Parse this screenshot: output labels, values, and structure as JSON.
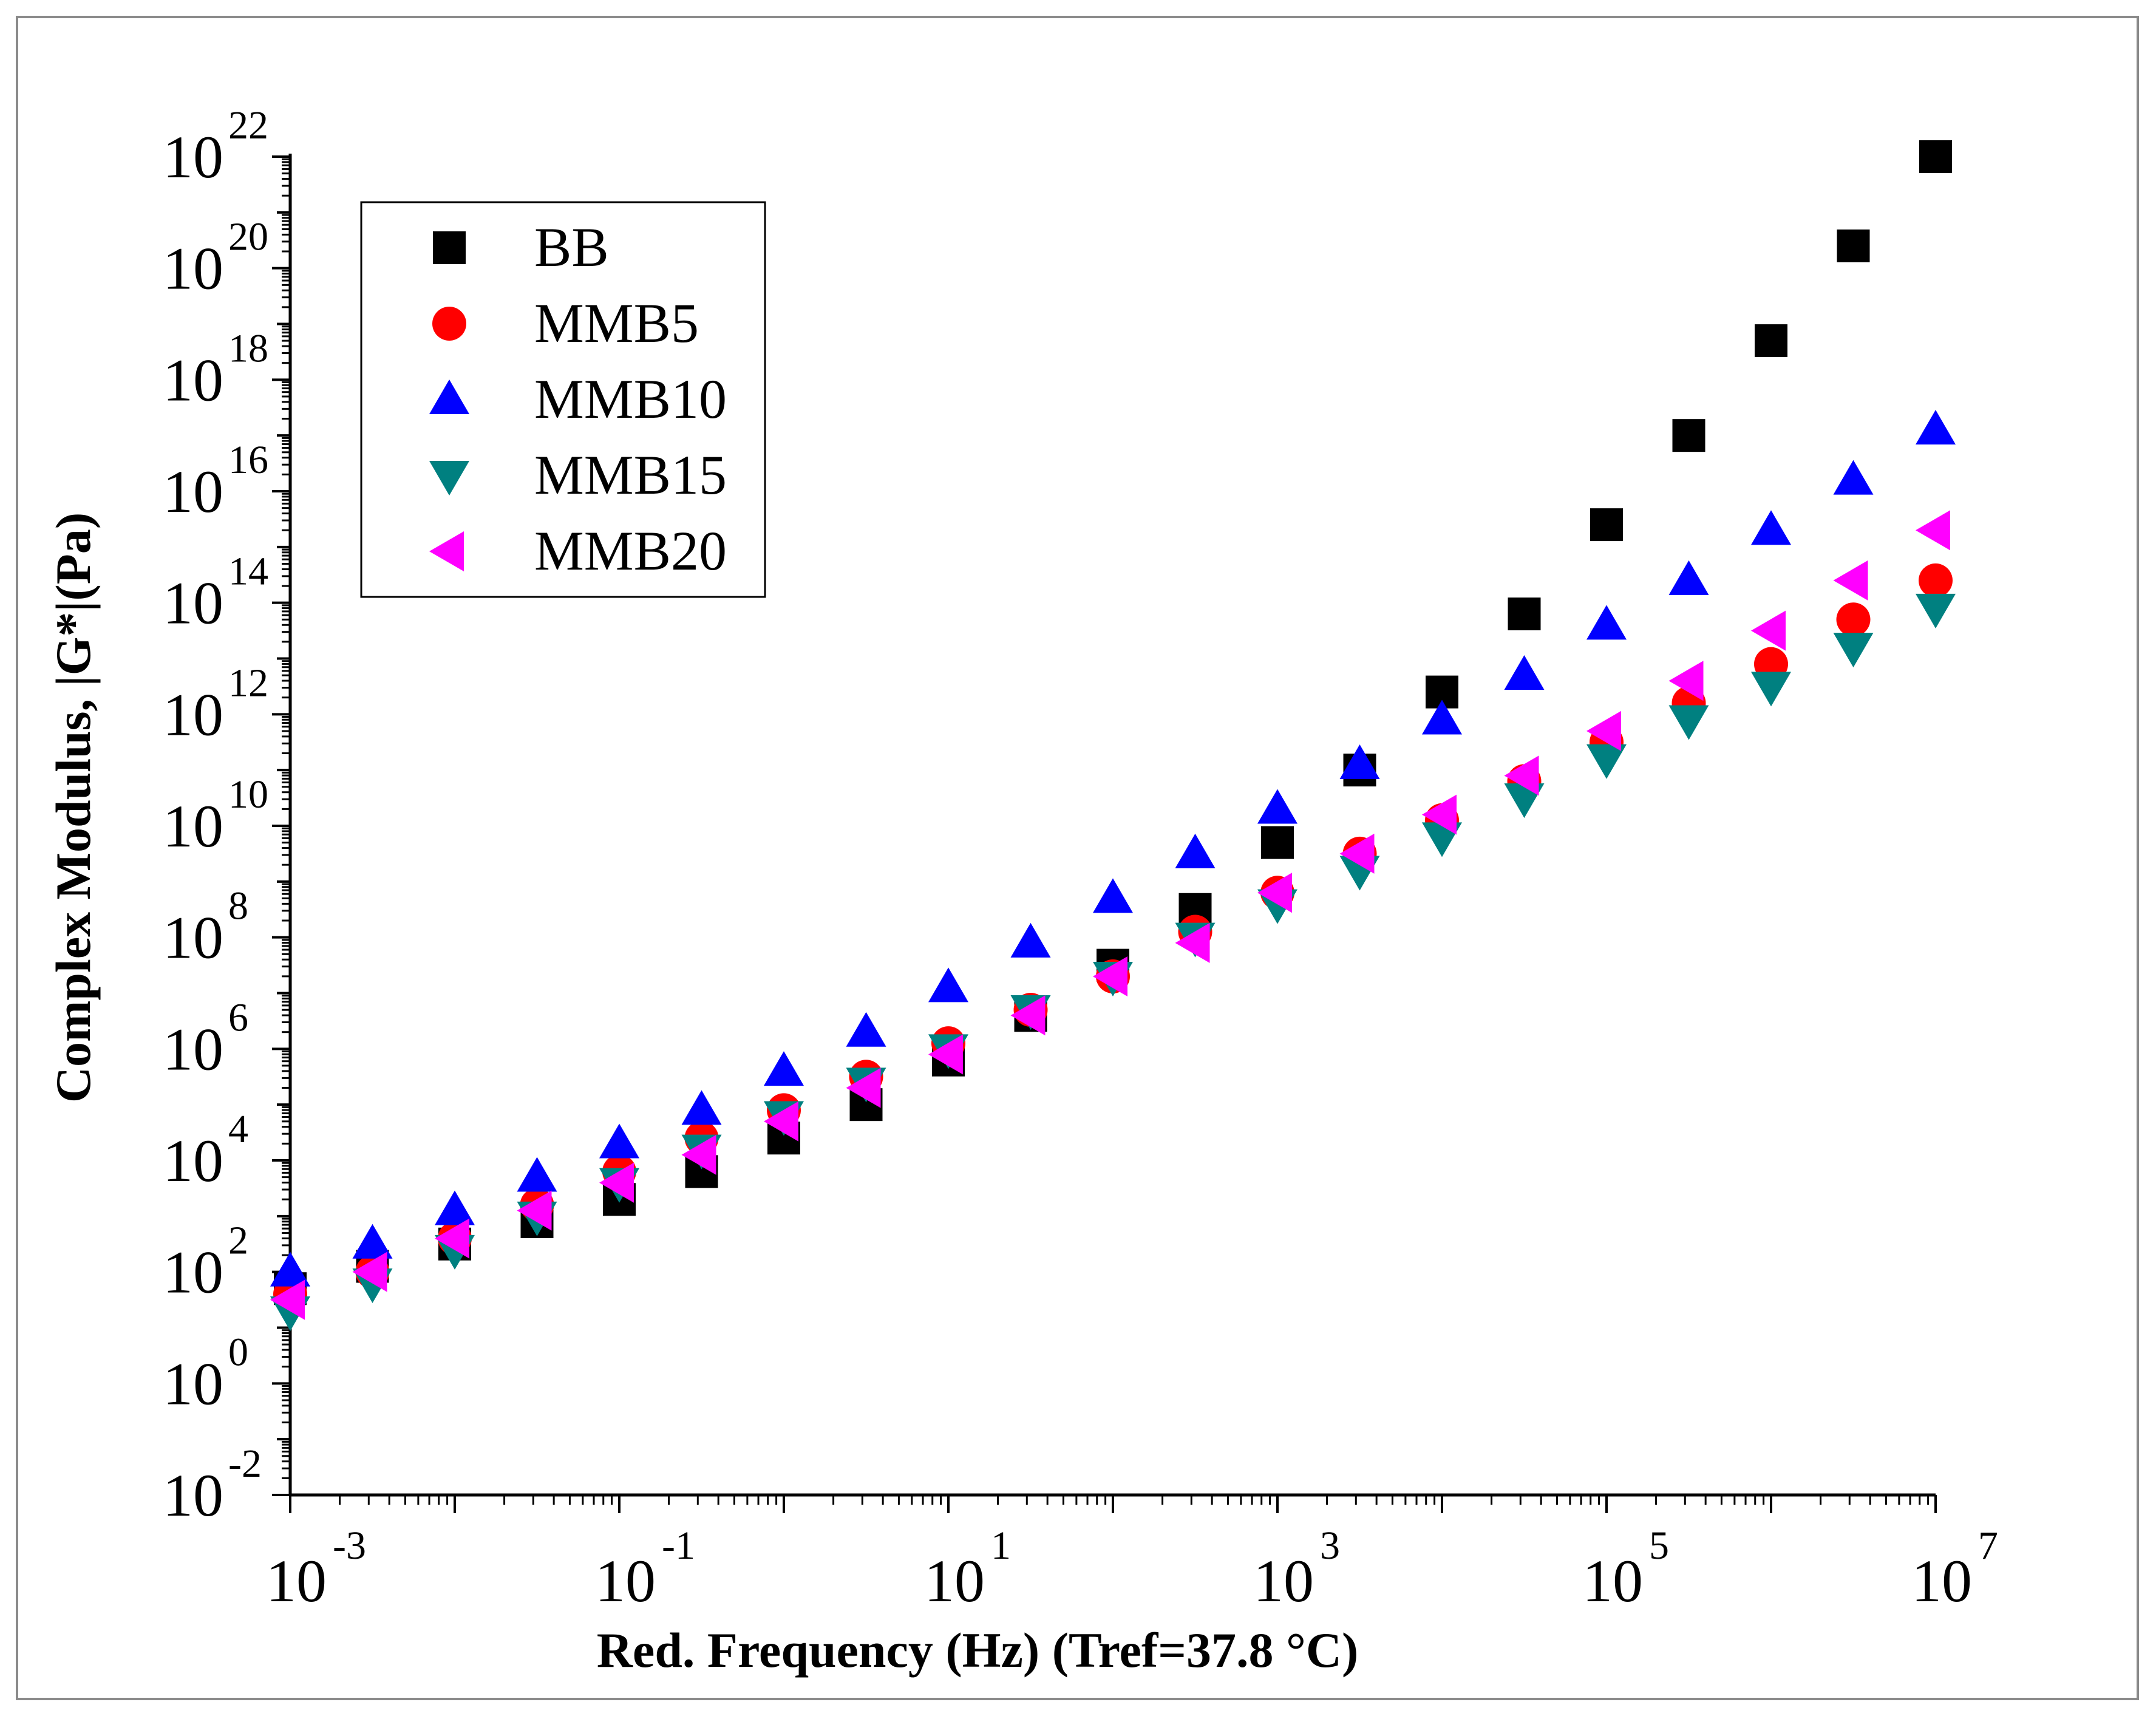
{
  "chart_data": {
    "type": "scatter",
    "title": "",
    "xlabel": "Red. Frequency (Hz) (Tref=37.8 °C)",
    "ylabel": "Complex Modulus, |G*|(Pa)",
    "xscale": "log",
    "yscale": "log",
    "xlim_exp": [
      -3,
      7
    ],
    "ylim_exp": [
      -2,
      22
    ],
    "x_ticks": [
      {
        "base": "10",
        "exp": "-3"
      },
      {
        "base": "10",
        "exp": "-1"
      },
      {
        "base": "10",
        "exp": "1"
      },
      {
        "base": "10",
        "exp": "3"
      },
      {
        "base": "10",
        "exp": "5"
      },
      {
        "base": "10",
        "exp": "7"
      }
    ],
    "y_ticks": [
      {
        "base": "10",
        "exp": "-2"
      },
      {
        "base": "10",
        "exp": "0"
      },
      {
        "base": "10",
        "exp": "2"
      },
      {
        "base": "10",
        "exp": "4"
      },
      {
        "base": "10",
        "exp": "6"
      },
      {
        "base": "10",
        "exp": "8"
      },
      {
        "base": "10",
        "exp": "10"
      },
      {
        "base": "10",
        "exp": "12"
      },
      {
        "base": "10",
        "exp": "14"
      },
      {
        "base": "10",
        "exp": "16"
      },
      {
        "base": "10",
        "exp": "18"
      },
      {
        "base": "10",
        "exp": "20"
      },
      {
        "base": "10",
        "exp": "22"
      }
    ],
    "legend_position": "top-left",
    "x_exp": [
      -3,
      -2.5,
      -2,
      -1.5,
      -1,
      -0.5,
      0,
      0.5,
      1,
      1.5,
      2,
      2.5,
      3,
      3.5,
      4,
      4.5,
      5,
      5.5,
      6,
      6.5,
      7
    ],
    "series": [
      {
        "name": "BB",
        "marker": "square",
        "color": "#000000",
        "log10_values": [
          1.7,
          2.1,
          2.5,
          2.9,
          3.3,
          3.8,
          4.4,
          5.0,
          5.8,
          6.6,
          7.5,
          8.5,
          9.7,
          11.0,
          12.4,
          13.8,
          15.4,
          17.0,
          18.7,
          20.4,
          22.0
        ]
      },
      {
        "name": "MMB5",
        "marker": "circle",
        "color": "#ff0000",
        "log10_values": [
          1.6,
          2.0,
          2.6,
          3.2,
          3.8,
          4.4,
          4.9,
          5.5,
          6.1,
          6.7,
          7.3,
          8.1,
          8.8,
          9.5,
          10.1,
          10.8,
          11.5,
          12.2,
          12.9,
          13.7,
          14.4
        ]
      },
      {
        "name": "MMB10",
        "marker": "triangle-up",
        "color": "#0000ff",
        "log10_values": [
          2.0,
          2.5,
          3.1,
          3.7,
          4.3,
          4.9,
          5.6,
          6.3,
          7.1,
          7.9,
          8.7,
          9.5,
          10.3,
          11.1,
          11.9,
          12.7,
          13.6,
          14.4,
          15.3,
          16.2,
          17.1
        ]
      },
      {
        "name": "MMB15",
        "marker": "triangle-down",
        "color": "#008080",
        "log10_values": [
          1.3,
          1.8,
          2.4,
          3.0,
          3.6,
          4.2,
          4.8,
          5.4,
          6.0,
          6.7,
          7.3,
          8.0,
          8.6,
          9.2,
          9.8,
          10.5,
          11.2,
          11.9,
          12.5,
          13.2,
          13.9
        ]
      },
      {
        "name": "MMB20",
        "marker": "triangle-left",
        "color": "#ff00ff",
        "log10_values": [
          1.5,
          2.0,
          2.6,
          3.1,
          3.6,
          4.1,
          4.7,
          5.3,
          5.9,
          6.6,
          7.3,
          7.9,
          8.8,
          9.5,
          10.2,
          10.9,
          11.7,
          12.6,
          13.5,
          14.4,
          15.3
        ]
      }
    ]
  }
}
